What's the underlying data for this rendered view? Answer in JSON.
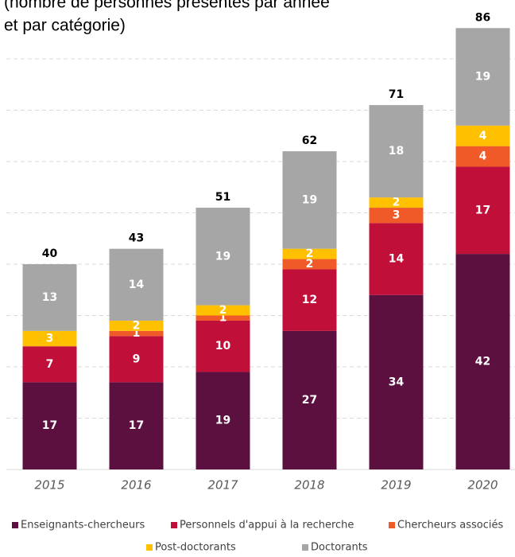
{
  "chart_data": {
    "type": "stacked_bar",
    "subtitle": [
      "(nombre de personnes présentes par année",
      "et par catégorie)"
    ],
    "categories": [
      "2015",
      "2016",
      "2017",
      "2018",
      "2019",
      "2020"
    ],
    "series": [
      {
        "name": "Enseignants-chercheurs",
        "color": "#5c1040",
        "values": [
          17,
          17,
          19,
          27,
          34,
          42
        ]
      },
      {
        "name": "Personnels d'appui à la recherche",
        "color": "#c0103a",
        "values": [
          7,
          9,
          10,
          12,
          14,
          17
        ]
      },
      {
        "name": "Chercheurs associés",
        "color": "#f05a28",
        "values": [
          0,
          1,
          1,
          2,
          3,
          4
        ]
      },
      {
        "name": "Post-doctorants",
        "color": "#ffc000",
        "values": [
          3,
          2,
          2,
          2,
          2,
          4
        ]
      },
      {
        "name": "Doctorants",
        "color": "#a6a6a6",
        "values": [
          13,
          14,
          19,
          19,
          18,
          19
        ]
      }
    ],
    "totals": [
      40,
      43,
      51,
      62,
      71,
      86
    ],
    "ylim": [
      0,
      90
    ],
    "yticks": [
      10,
      20,
      30,
      40,
      50,
      60,
      70,
      80
    ],
    "grid": true
  }
}
